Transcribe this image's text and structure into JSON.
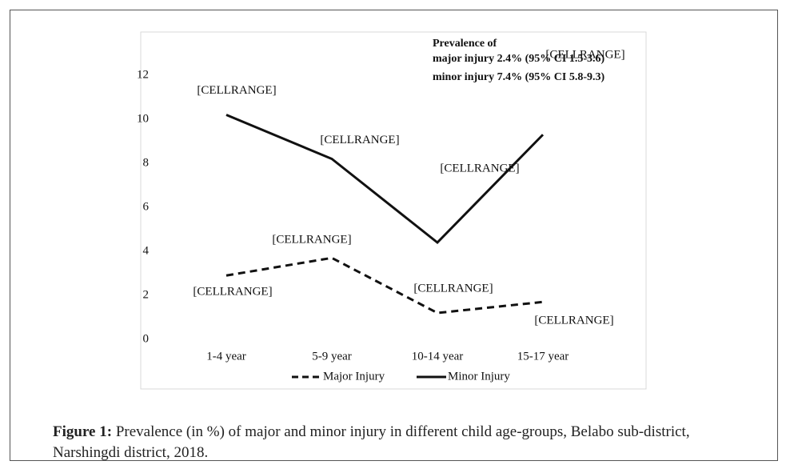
{
  "chart_data": {
    "type": "line",
    "categories": [
      "1-4 year",
      "5-9 year",
      "10-14 year",
      "15-17 year"
    ],
    "series": [
      {
        "name": "Major Injury",
        "color": "#111111",
        "dash": true,
        "values": [
          2.9,
          3.7,
          1.2,
          1.7
        ],
        "labels": [
          "[CELLRANGE]",
          "[CELLRANGE]",
          "[CELLRANGE]",
          "[CELLRANGE]"
        ]
      },
      {
        "name": "Minor Injury",
        "color": "#111111",
        "dash": false,
        "values": [
          10.2,
          8.2,
          4.4,
          9.3
        ],
        "labels": [
          "[CELLRANGE]",
          "[CELLRANGE]",
          "[CELLRANGE]",
          "[CELLRANGE]"
        ]
      }
    ],
    "ylim": [
      0,
      12
    ],
    "yticks": [
      0,
      2,
      4,
      6,
      8,
      10,
      12
    ],
    "grid": false,
    "legend": "bottom",
    "annotations": [
      "Prevalence of",
      "major injury 2.4% (95% CI 1.5-3.6)",
      "minor injury 7.4% (95% CI 5.8-9.3)"
    ]
  },
  "caption": {
    "label": "Figure 1:",
    "text": "Prevalence (in %) of major and minor injury in different child age-groups, Belabo sub-district, Narshingdi district, 2018."
  }
}
